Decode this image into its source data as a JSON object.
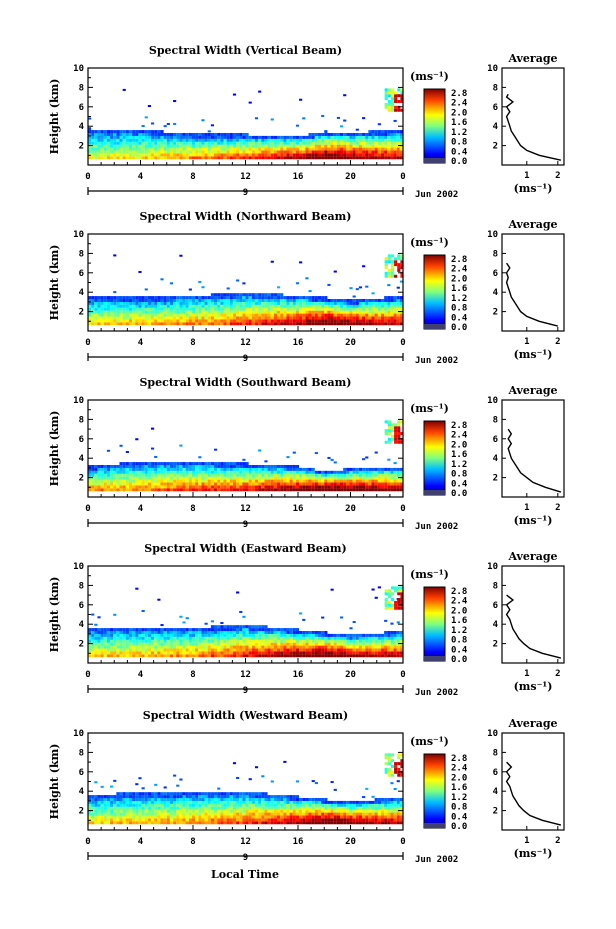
{
  "figure": {
    "xlabel_bottom": "Local Time"
  },
  "chart_data": [
    {
      "type": "heatmap",
      "title": "Spectral Width (Vertical Beam)",
      "ylabel": "Height (km)",
      "x_ticks": [
        "0",
        "4",
        "8",
        "12",
        "16",
        "20",
        "0"
      ],
      "xlim": [
        0,
        24
      ],
      "ylim": [
        0,
        10
      ],
      "y_ticks": [
        "2",
        "4",
        "6",
        "8",
        "10"
      ],
      "date_marker": "9",
      "date_label": "Jun 2002",
      "colorbar": {
        "unit": "(ms⁻¹)",
        "ticks": [
          "2.8",
          "2.4",
          "2.0",
          "1.6",
          "1.2",
          "0.8",
          "0.4",
          "0.0"
        ],
        "range": [
          0,
          2.8
        ]
      },
      "surface": [
        {
          "x": 0,
          "top": 3.6,
          "base": 0.7,
          "col": 0.45
        },
        {
          "x": 4,
          "top": 3.5,
          "base": 0.7,
          "col": 0.5
        },
        {
          "x": 8,
          "top": 3.0,
          "base": 0.7,
          "col": 0.6
        },
        {
          "x": 12,
          "top": 3.0,
          "base": 0.7,
          "col": 0.7
        },
        {
          "x": 16,
          "top": 2.8,
          "base": 0.7,
          "col": 0.85
        },
        {
          "x": 18,
          "top": 3.3,
          "base": 0.7,
          "col": 1.0
        },
        {
          "x": 20,
          "top": 3.2,
          "base": 0.7,
          "col": 0.9
        },
        {
          "x": 24,
          "top": 3.5,
          "base": 0.7,
          "col": 0.8
        }
      ],
      "average": {
        "title": "Average",
        "xlabel": "(ms⁻¹)",
        "x_ticks": [
          "1",
          "2"
        ],
        "xlim": [
          0.2,
          2.2
        ],
        "y_ticks": [
          "2",
          "4",
          "6",
          "8",
          "10"
        ],
        "profile": [
          [
            2.1,
            0.5
          ],
          [
            1.4,
            1.0
          ],
          [
            1.0,
            1.5
          ],
          [
            0.8,
            2.0
          ],
          [
            0.7,
            2.5
          ],
          [
            0.6,
            3.0
          ],
          [
            0.5,
            3.5
          ],
          [
            0.45,
            4.0
          ],
          [
            0.4,
            4.5
          ],
          [
            0.35,
            5.0
          ],
          [
            0.45,
            5.5
          ],
          [
            0.35,
            6.0
          ],
          [
            0.55,
            6.5
          ],
          [
            0.35,
            7.0
          ],
          [
            0.4,
            7.3
          ]
        ]
      }
    },
    {
      "type": "heatmap",
      "title": "Spectral Width (Northward Beam)",
      "ylabel": "Height (km)",
      "x_ticks": [
        "0",
        "4",
        "8",
        "12",
        "16",
        "20",
        "0"
      ],
      "xlim": [
        0,
        24
      ],
      "ylim": [
        0,
        10
      ],
      "y_ticks": [
        "2",
        "4",
        "6",
        "8",
        "10"
      ],
      "date_marker": "9",
      "date_label": "Jun 2002",
      "colorbar": {
        "unit": "(ms⁻¹)",
        "ticks": [
          "2.8",
          "2.4",
          "2.0",
          "1.6",
          "1.2",
          "0.8",
          "0.4",
          "0.0"
        ],
        "range": [
          0,
          2.8
        ]
      },
      "surface": [
        {
          "x": 0,
          "top": 3.5,
          "base": 0.7,
          "col": 0.5
        },
        {
          "x": 4,
          "top": 3.3,
          "base": 0.7,
          "col": 0.55
        },
        {
          "x": 8,
          "top": 3.5,
          "base": 0.7,
          "col": 0.6
        },
        {
          "x": 12,
          "top": 3.8,
          "base": 0.7,
          "col": 0.7
        },
        {
          "x": 16,
          "top": 3.5,
          "base": 0.7,
          "col": 0.85
        },
        {
          "x": 18,
          "top": 3.3,
          "base": 0.7,
          "col": 1.0
        },
        {
          "x": 20,
          "top": 3.0,
          "base": 0.7,
          "col": 0.9
        },
        {
          "x": 24,
          "top": 3.5,
          "base": 0.7,
          "col": 0.8
        }
      ],
      "average": {
        "title": "Average",
        "xlabel": "(ms⁻¹)",
        "x_ticks": [
          "1",
          "2"
        ],
        "xlim": [
          0.2,
          2.2
        ],
        "y_ticks": [
          "2",
          "4",
          "6",
          "8",
          "10"
        ],
        "profile": [
          [
            2.0,
            0.5
          ],
          [
            1.4,
            1.0
          ],
          [
            1.0,
            1.5
          ],
          [
            0.8,
            2.0
          ],
          [
            0.7,
            2.5
          ],
          [
            0.6,
            3.0
          ],
          [
            0.5,
            3.5
          ],
          [
            0.45,
            4.0
          ],
          [
            0.4,
            4.5
          ],
          [
            0.35,
            5.0
          ],
          [
            0.4,
            5.5
          ],
          [
            0.35,
            6.0
          ],
          [
            0.45,
            6.5
          ],
          [
            0.35,
            7.0
          ]
        ]
      }
    },
    {
      "type": "heatmap",
      "title": "Spectral Width (Southward Beam)",
      "ylabel": "Height (km)",
      "x_ticks": [
        "0",
        "4",
        "8",
        "12",
        "16",
        "20",
        "0"
      ],
      "xlim": [
        0,
        24
      ],
      "ylim": [
        0,
        10
      ],
      "y_ticks": [
        "2",
        "4",
        "6",
        "8",
        "10"
      ],
      "date_marker": "9",
      "date_label": "Jun 2002",
      "colorbar": {
        "unit": "(ms⁻¹)",
        "ticks": [
          "2.8",
          "2.4",
          "2.0",
          "1.6",
          "1.2",
          "0.8",
          "0.4",
          "0.0"
        ],
        "range": [
          0,
          2.8
        ]
      },
      "surface": [
        {
          "x": 0,
          "top": 3.0,
          "base": 0.7,
          "col": 0.6
        },
        {
          "x": 4,
          "top": 3.5,
          "base": 0.7,
          "col": 0.6
        },
        {
          "x": 8,
          "top": 3.5,
          "base": 0.7,
          "col": 0.7
        },
        {
          "x": 12,
          "top": 3.3,
          "base": 0.7,
          "col": 0.75
        },
        {
          "x": 16,
          "top": 3.0,
          "base": 0.7,
          "col": 0.9
        },
        {
          "x": 18,
          "top": 2.5,
          "base": 0.7,
          "col": 1.0
        },
        {
          "x": 20,
          "top": 2.8,
          "base": 0.7,
          "col": 0.95
        },
        {
          "x": 24,
          "top": 3.0,
          "base": 0.7,
          "col": 0.85
        }
      ],
      "average": {
        "title": "Average",
        "xlabel": "(ms⁻¹)",
        "x_ticks": [
          "1",
          "2"
        ],
        "xlim": [
          0.2,
          2.2
        ],
        "y_ticks": [
          "2",
          "4",
          "6",
          "8",
          "10"
        ],
        "profile": [
          [
            2.1,
            0.5
          ],
          [
            1.6,
            1.0
          ],
          [
            1.2,
            1.5
          ],
          [
            1.0,
            2.0
          ],
          [
            0.8,
            2.5
          ],
          [
            0.7,
            3.0
          ],
          [
            0.6,
            3.5
          ],
          [
            0.5,
            4.0
          ],
          [
            0.45,
            4.5
          ],
          [
            0.4,
            5.0
          ],
          [
            0.5,
            5.5
          ],
          [
            0.4,
            6.0
          ],
          [
            0.5,
            6.5
          ],
          [
            0.4,
            7.0
          ]
        ]
      }
    },
    {
      "type": "heatmap",
      "title": "Spectral Width (Eastward Beam)",
      "ylabel": "Height (km)",
      "x_ticks": [
        "0",
        "4",
        "8",
        "12",
        "16",
        "20",
        "0"
      ],
      "xlim": [
        0,
        24
      ],
      "ylim": [
        0,
        10
      ],
      "y_ticks": [
        "2",
        "4",
        "6",
        "8",
        "10"
      ],
      "date_marker": "9",
      "date_label": "Jun 2002",
      "colorbar": {
        "unit": "(ms⁻¹)",
        "ticks": [
          "2.8",
          "2.4",
          "2.0",
          "1.6",
          "1.2",
          "0.8",
          "0.4",
          "0.0"
        ],
        "range": [
          0,
          2.8
        ]
      },
      "surface": [
        {
          "x": 0,
          "top": 3.5,
          "base": 0.7,
          "col": 0.5
        },
        {
          "x": 4,
          "top": 3.5,
          "base": 0.7,
          "col": 0.55
        },
        {
          "x": 8,
          "top": 3.5,
          "base": 0.7,
          "col": 0.6
        },
        {
          "x": 12,
          "top": 3.8,
          "base": 0.7,
          "col": 0.75
        },
        {
          "x": 16,
          "top": 3.3,
          "base": 0.7,
          "col": 0.9
        },
        {
          "x": 18,
          "top": 3.0,
          "base": 0.7,
          "col": 1.0
        },
        {
          "x": 20,
          "top": 2.7,
          "base": 0.7,
          "col": 0.9
        },
        {
          "x": 24,
          "top": 3.2,
          "base": 0.7,
          "col": 0.8
        }
      ],
      "average": {
        "title": "Average",
        "xlabel": "(ms⁻¹)",
        "x_ticks": [
          "1",
          "2"
        ],
        "xlim": [
          0.2,
          2.2
        ],
        "y_ticks": [
          "2",
          "4",
          "6",
          "8",
          "10"
        ],
        "profile": [
          [
            2.1,
            0.5
          ],
          [
            1.5,
            1.0
          ],
          [
            1.1,
            1.5
          ],
          [
            0.9,
            2.0
          ],
          [
            0.75,
            2.5
          ],
          [
            0.65,
            3.0
          ],
          [
            0.55,
            3.5
          ],
          [
            0.5,
            4.0
          ],
          [
            0.45,
            4.5
          ],
          [
            0.35,
            5.0
          ],
          [
            0.45,
            5.5
          ],
          [
            0.35,
            6.0
          ],
          [
            0.55,
            6.5
          ],
          [
            0.35,
            7.0
          ]
        ]
      }
    },
    {
      "type": "heatmap",
      "title": "Spectral Width (Westward Beam)",
      "ylabel": "Height (km)",
      "x_ticks": [
        "0",
        "4",
        "8",
        "12",
        "16",
        "20",
        "0"
      ],
      "xlim": [
        0,
        24
      ],
      "ylim": [
        0,
        10
      ],
      "y_ticks": [
        "2",
        "4",
        "6",
        "8",
        "10"
      ],
      "date_marker": "9",
      "date_label": "Jun 2002",
      "colorbar": {
        "unit": "(ms⁻¹)",
        "ticks": [
          "2.8",
          "2.4",
          "2.0",
          "1.6",
          "1.2",
          "0.8",
          "0.4",
          "0.0"
        ],
        "range": [
          0,
          2.8
        ]
      },
      "surface": [
        {
          "x": 0,
          "top": 3.5,
          "base": 0.7,
          "col": 0.5
        },
        {
          "x": 4,
          "top": 3.7,
          "base": 0.7,
          "col": 0.55
        },
        {
          "x": 8,
          "top": 3.8,
          "base": 0.7,
          "col": 0.6
        },
        {
          "x": 12,
          "top": 3.8,
          "base": 0.7,
          "col": 0.7
        },
        {
          "x": 16,
          "top": 3.3,
          "base": 0.7,
          "col": 0.85
        },
        {
          "x": 18,
          "top": 3.0,
          "base": 0.7,
          "col": 1.0
        },
        {
          "x": 20,
          "top": 2.8,
          "base": 0.7,
          "col": 0.9
        },
        {
          "x": 24,
          "top": 3.3,
          "base": 0.7,
          "col": 0.8
        }
      ],
      "average": {
        "title": "Average",
        "xlabel": "(ms⁻¹)",
        "x_ticks": [
          "1",
          "2"
        ],
        "xlim": [
          0.2,
          2.2
        ],
        "y_ticks": [
          "2",
          "4",
          "6",
          "8",
          "10"
        ],
        "profile": [
          [
            2.1,
            0.5
          ],
          [
            1.5,
            1.0
          ],
          [
            1.1,
            1.5
          ],
          [
            0.9,
            2.0
          ],
          [
            0.75,
            2.5
          ],
          [
            0.65,
            3.0
          ],
          [
            0.55,
            3.5
          ],
          [
            0.5,
            4.0
          ],
          [
            0.45,
            4.5
          ],
          [
            0.35,
            5.0
          ],
          [
            0.45,
            5.5
          ],
          [
            0.35,
            6.0
          ],
          [
            0.5,
            6.5
          ],
          [
            0.35,
            7.0
          ]
        ]
      }
    }
  ]
}
